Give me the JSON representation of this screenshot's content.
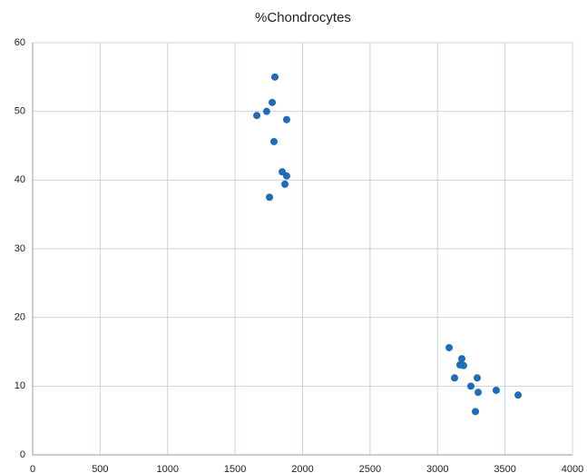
{
  "chart_data": {
    "type": "scatter",
    "title": "%Chondrocytes",
    "series": [
      {
        "color": "#1f6cb8",
        "x": [
          1795,
          1775,
          1734,
          1661,
          1882,
          1788,
          1849,
          1882,
          1869,
          1755,
          3086,
          3180,
          3166,
          3193,
          3126,
          3294,
          3247,
          3435,
          3301,
          3597,
          3281
        ],
        "values": [
          55.0,
          51.3,
          50.0,
          49.4,
          48.8,
          45.6,
          41.2,
          40.6,
          39.4,
          37.5,
          15.6,
          14.0,
          13.1,
          13.0,
          11.2,
          11.2,
          10.0,
          9.4,
          9.1,
          8.7,
          6.3
        ]
      }
    ],
    "xlim": [
      0,
      4000
    ],
    "xticks": [
      0,
      500,
      1000,
      1500,
      2000,
      2500,
      3000,
      3500,
      4000
    ],
    "ylim": [
      0,
      60
    ],
    "yticks": [
      0,
      10,
      20,
      30,
      40,
      50,
      60
    ],
    "grid": true
  }
}
